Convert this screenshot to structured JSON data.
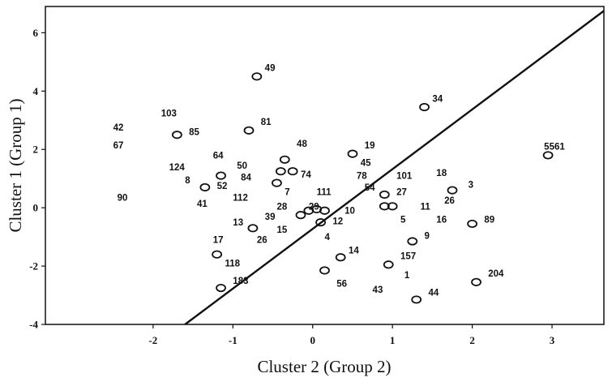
{
  "chart_data": {
    "type": "scatter",
    "xlabel": "Cluster 2 (Group 2)",
    "ylabel": "Cluster 1 (Group 1)",
    "xlim": [
      -3.35,
      3.65
    ],
    "ylim": [
      -4,
      6.9
    ],
    "x_ticks": [
      "-2",
      "-1",
      "0",
      "1",
      "2",
      "3"
    ],
    "y_ticks": [
      "6",
      "4",
      "2",
      "0",
      "-2",
      "-4"
    ],
    "grid": false,
    "legend": "none",
    "reference_line": {
      "x1": -1.6,
      "y1": -4,
      "x2": 3.65,
      "y2": 6.75
    },
    "points": [
      {
        "x": -0.7,
        "y": 4.5
      },
      {
        "x": 1.4,
        "y": 3.45
      },
      {
        "x": -1.7,
        "y": 2.5
      },
      {
        "x": -0.8,
        "y": 2.65
      },
      {
        "x": -0.35,
        "y": 1.65
      },
      {
        "x": 0.5,
        "y": 1.85
      },
      {
        "x": 2.95,
        "y": 1.8
      },
      {
        "x": -1.15,
        "y": 1.1
      },
      {
        "x": -0.4,
        "y": 1.25
      },
      {
        "x": -0.25,
        "y": 1.25
      },
      {
        "x": -0.45,
        "y": 0.85
      },
      {
        "x": -1.35,
        "y": 0.7
      },
      {
        "x": 0.9,
        "y": 0.45
      },
      {
        "x": 1.75,
        "y": 0.6
      },
      {
        "x": -0.05,
        "y": -0.1
      },
      {
        "x": 0.05,
        "y": -0.05
      },
      {
        "x": 0.15,
        "y": -0.1
      },
      {
        "x": -0.15,
        "y": -0.25
      },
      {
        "x": 0.1,
        "y": -0.5
      },
      {
        "x": 0.9,
        "y": 0.05
      },
      {
        "x": 1.0,
        "y": 0.05
      },
      {
        "x": 2.0,
        "y": -0.55
      },
      {
        "x": -0.75,
        "y": -0.7
      },
      {
        "x": 1.25,
        "y": -1.15
      },
      {
        "x": -1.2,
        "y": -1.6
      },
      {
        "x": 0.35,
        "y": -1.7
      },
      {
        "x": 0.95,
        "y": -1.95
      },
      {
        "x": 0.15,
        "y": -2.15
      },
      {
        "x": -1.15,
        "y": -2.75
      },
      {
        "x": 2.05,
        "y": -2.55
      },
      {
        "x": 1.3,
        "y": -3.15
      }
    ],
    "labels": [
      {
        "text": "49",
        "x": -0.6,
        "y": 4.8
      },
      {
        "text": "34",
        "x": 1.5,
        "y": 3.75
      },
      {
        "text": "103",
        "x": -1.9,
        "y": 3.25
      },
      {
        "text": "81",
        "x": -0.65,
        "y": 2.95
      },
      {
        "text": "42",
        "x": -2.5,
        "y": 2.75
      },
      {
        "text": "85",
        "x": -1.55,
        "y": 2.6
      },
      {
        "text": "67",
        "x": -2.5,
        "y": 2.15
      },
      {
        "text": "48",
        "x": -0.2,
        "y": 2.2
      },
      {
        "text": "19",
        "x": 0.65,
        "y": 2.15
      },
      {
        "text": "5561",
        "x": 2.9,
        "y": 2.1
      },
      {
        "text": "64",
        "x": -1.25,
        "y": 1.8
      },
      {
        "text": "45",
        "x": 0.6,
        "y": 1.55
      },
      {
        "text": "124",
        "x": -1.8,
        "y": 1.4
      },
      {
        "text": "50",
        "x": -0.95,
        "y": 1.45
      },
      {
        "text": "78",
        "x": 0.55,
        "y": 1.1
      },
      {
        "text": "101",
        "x": 1.05,
        "y": 1.1
      },
      {
        "text": "18",
        "x": 1.55,
        "y": 1.2
      },
      {
        "text": "84",
        "x": -0.9,
        "y": 1.05
      },
      {
        "text": "74",
        "x": -0.15,
        "y": 1.15
      },
      {
        "text": "8",
        "x": -1.6,
        "y": 0.95
      },
      {
        "text": "52",
        "x": -1.2,
        "y": 0.75
      },
      {
        "text": "54",
        "x": 0.65,
        "y": 0.7
      },
      {
        "text": "27",
        "x": 1.05,
        "y": 0.55
      },
      {
        "text": "3",
        "x": 1.95,
        "y": 0.8
      },
      {
        "text": "7",
        "x": -0.35,
        "y": 0.55
      },
      {
        "text": "111",
        "x": 0.05,
        "y": 0.55
      },
      {
        "text": "90",
        "x": -2.45,
        "y": 0.35
      },
      {
        "text": "41",
        "x": -1.45,
        "y": 0.15
      },
      {
        "text": "112",
        "x": -1.0,
        "y": 0.35
      },
      {
        "text": "11",
        "x": 1.35,
        "y": 0.05
      },
      {
        "text": "26",
        "x": 1.65,
        "y": 0.25
      },
      {
        "text": "28",
        "x": -0.45,
        "y": 0.05
      },
      {
        "text": "29",
        "x": -0.05,
        "y": 0.05
      },
      {
        "text": "10",
        "x": 0.4,
        "y": -0.1
      },
      {
        "text": "39",
        "x": -0.6,
        "y": -0.3
      },
      {
        "text": "16",
        "x": 1.55,
        "y": -0.4
      },
      {
        "text": "89",
        "x": 2.15,
        "y": -0.4
      },
      {
        "text": "13",
        "x": -1.0,
        "y": -0.5
      },
      {
        "text": "12",
        "x": 0.25,
        "y": -0.45
      },
      {
        "text": "5",
        "x": 1.1,
        "y": -0.4
      },
      {
        "text": "15",
        "x": -0.45,
        "y": -0.75
      },
      {
        "text": "4",
        "x": 0.15,
        "y": -1.0
      },
      {
        "text": "9",
        "x": 1.4,
        "y": -0.95
      },
      {
        "text": "17",
        "x": -1.25,
        "y": -1.1
      },
      {
        "text": "26",
        "x": -0.7,
        "y": -1.1
      },
      {
        "text": "14",
        "x": 0.45,
        "y": -1.45
      },
      {
        "text": "157",
        "x": 1.1,
        "y": -1.65
      },
      {
        "text": "118",
        "x": -1.1,
        "y": -1.9
      },
      {
        "text": "1",
        "x": 1.15,
        "y": -2.3
      },
      {
        "text": "204",
        "x": 2.2,
        "y": -2.25
      },
      {
        "text": "183",
        "x": -1.0,
        "y": -2.5
      },
      {
        "text": "56",
        "x": 0.3,
        "y": -2.6
      },
      {
        "text": "43",
        "x": 0.75,
        "y": -2.8
      },
      {
        "text": "44",
        "x": 1.45,
        "y": -2.9
      }
    ]
  }
}
